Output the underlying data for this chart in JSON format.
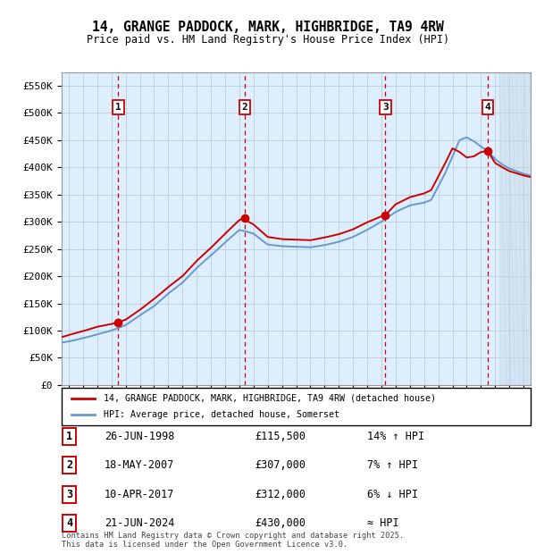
{
  "title": "14, GRANGE PADDOCK, MARK, HIGHBRIDGE, TA9 4RW",
  "subtitle": "Price paid vs. HM Land Registry's House Price Index (HPI)",
  "property_label": "14, GRANGE PADDOCK, MARK, HIGHBRIDGE, TA9 4RW (detached house)",
  "hpi_label": "HPI: Average price, detached house, Somerset",
  "footer_line1": "Contains HM Land Registry data © Crown copyright and database right 2025.",
  "footer_line2": "This data is licensed under the Open Government Licence v3.0.",
  "transactions": [
    {
      "num": 1,
      "date": "26-JUN-1998",
      "price": "£115,500",
      "year": 1998.49,
      "rel": "14% ↑ HPI"
    },
    {
      "num": 2,
      "date": "18-MAY-2007",
      "price": "£307,000",
      "year": 2007.38,
      "rel": "7% ↑ HPI"
    },
    {
      "num": 3,
      "date": "10-APR-2017",
      "price": "£312,000",
      "year": 2017.28,
      "rel": "6% ↓ HPI"
    },
    {
      "num": 4,
      "date": "21-JUN-2024",
      "price": "£430,000",
      "year": 2024.48,
      "rel": "≈ HPI"
    }
  ],
  "ylim": [
    0,
    575000
  ],
  "yticks": [
    0,
    50000,
    100000,
    150000,
    200000,
    250000,
    300000,
    350000,
    400000,
    450000,
    500000,
    550000
  ],
  "xlim_start": 1994.5,
  "xlim_end": 2027.5,
  "xticks": [
    1995,
    1996,
    1997,
    1998,
    1999,
    2000,
    2001,
    2002,
    2003,
    2004,
    2005,
    2006,
    2007,
    2008,
    2009,
    2010,
    2011,
    2012,
    2013,
    2014,
    2015,
    2016,
    2017,
    2018,
    2019,
    2020,
    2021,
    2022,
    2023,
    2024,
    2025,
    2026,
    2027
  ],
  "red_color": "#cc0000",
  "blue_color": "#6699cc",
  "hatch_color": "#aabbcc",
  "plot_bg": "#ddeeff",
  "grid_color": "#bbccdd",
  "future_start": 2025.3
}
